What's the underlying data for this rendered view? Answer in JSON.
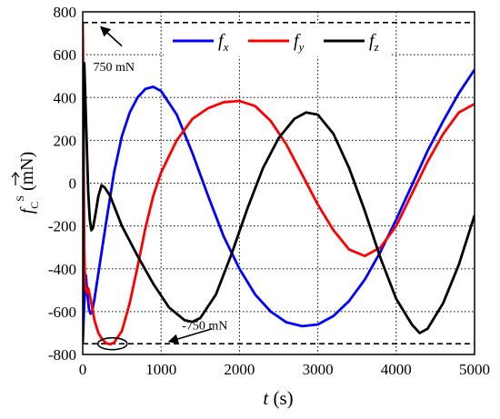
{
  "chart_data": {
    "type": "line",
    "xlabel": "t (s)",
    "ylabel": "f_C^S (mN)",
    "xlim": [
      0,
      5000
    ],
    "ylim": [
      -800,
      800
    ],
    "xticks": [
      "0",
      "1000",
      "2000",
      "3000",
      "4000",
      "5000"
    ],
    "yticks": [
      "800",
      "600",
      "400",
      "200",
      "0",
      "-200",
      "-400",
      "-600",
      "-800"
    ],
    "grid": true,
    "legend_position": "top",
    "series": [
      {
        "name": "f_x",
        "color": "#0000ff",
        "points": [
          [
            0,
            -750
          ],
          [
            20,
            -560
          ],
          [
            40,
            -430
          ],
          [
            60,
            -520
          ],
          [
            80,
            -590
          ],
          [
            100,
            -610
          ],
          [
            120,
            -600
          ],
          [
            150,
            -540
          ],
          [
            200,
            -420
          ],
          [
            300,
            -180
          ],
          [
            400,
            50
          ],
          [
            500,
            220
          ],
          [
            600,
            330
          ],
          [
            700,
            400
          ],
          [
            800,
            440
          ],
          [
            900,
            450
          ],
          [
            1000,
            430
          ],
          [
            1200,
            320
          ],
          [
            1400,
            140
          ],
          [
            1600,
            -60
          ],
          [
            1800,
            -250
          ],
          [
            2000,
            -400
          ],
          [
            2200,
            -520
          ],
          [
            2400,
            -600
          ],
          [
            2600,
            -650
          ],
          [
            2800,
            -668
          ],
          [
            3000,
            -660
          ],
          [
            3200,
            -620
          ],
          [
            3400,
            -550
          ],
          [
            3600,
            -450
          ],
          [
            3800,
            -320
          ],
          [
            4000,
            -170
          ],
          [
            4200,
            -10
          ],
          [
            4400,
            150
          ],
          [
            4600,
            290
          ],
          [
            4800,
            420
          ],
          [
            5000,
            530
          ]
        ]
      },
      {
        "name": "f_y",
        "color": "#ff0000",
        "points": [
          [
            0,
            750
          ],
          [
            5,
            580
          ],
          [
            10,
            200
          ],
          [
            20,
            -300
          ],
          [
            30,
            -480
          ],
          [
            50,
            -510
          ],
          [
            70,
            -490
          ],
          [
            100,
            -540
          ],
          [
            150,
            -640
          ],
          [
            200,
            -700
          ],
          [
            250,
            -730
          ],
          [
            300,
            -748
          ],
          [
            350,
            -752
          ],
          [
            400,
            -745
          ],
          [
            500,
            -690
          ],
          [
            600,
            -560
          ],
          [
            700,
            -390
          ],
          [
            800,
            -210
          ],
          [
            900,
            -60
          ],
          [
            1000,
            50
          ],
          [
            1200,
            200
          ],
          [
            1400,
            300
          ],
          [
            1600,
            350
          ],
          [
            1800,
            378
          ],
          [
            2000,
            384
          ],
          [
            2200,
            360
          ],
          [
            2400,
            290
          ],
          [
            2600,
            180
          ],
          [
            2800,
            40
          ],
          [
            3000,
            -100
          ],
          [
            3200,
            -220
          ],
          [
            3400,
            -310
          ],
          [
            3600,
            -340
          ],
          [
            3800,
            -300
          ],
          [
            4000,
            -200
          ],
          [
            4200,
            -50
          ],
          [
            4400,
            100
          ],
          [
            4600,
            230
          ],
          [
            4800,
            330
          ],
          [
            5000,
            370
          ]
        ]
      },
      {
        "name": "f_z",
        "color": "#000000",
        "points": [
          [
            0,
            -740
          ],
          [
            5,
            -300
          ],
          [
            10,
            200
          ],
          [
            15,
            480
          ],
          [
            20,
            560
          ],
          [
            30,
            440
          ],
          [
            50,
            200
          ],
          [
            70,
            -40
          ],
          [
            90,
            -170
          ],
          [
            110,
            -220
          ],
          [
            130,
            -210
          ],
          [
            160,
            -150
          ],
          [
            200,
            -60
          ],
          [
            240,
            -10
          ],
          [
            280,
            -20
          ],
          [
            350,
            -60
          ],
          [
            500,
            -200
          ],
          [
            700,
            -340
          ],
          [
            900,
            -470
          ],
          [
            1100,
            -580
          ],
          [
            1300,
            -640
          ],
          [
            1400,
            -648
          ],
          [
            1500,
            -630
          ],
          [
            1700,
            -520
          ],
          [
            1900,
            -330
          ],
          [
            2100,
            -120
          ],
          [
            2300,
            70
          ],
          [
            2500,
            210
          ],
          [
            2700,
            300
          ],
          [
            2850,
            330
          ],
          [
            3000,
            320
          ],
          [
            3200,
            230
          ],
          [
            3400,
            70
          ],
          [
            3600,
            -130
          ],
          [
            3800,
            -350
          ],
          [
            4000,
            -540
          ],
          [
            4200,
            -660
          ],
          [
            4300,
            -700
          ],
          [
            4400,
            -680
          ],
          [
            4600,
            -560
          ],
          [
            4800,
            -380
          ],
          [
            5000,
            -150
          ]
        ]
      }
    ],
    "reference_lines": [
      {
        "value": 750,
        "style": "dashed",
        "color": "#000000"
      },
      {
        "value": -750,
        "style": "dashed",
        "color": "#000000"
      }
    ],
    "annotations": [
      {
        "text": "750 mN",
        "x": 250,
        "y": 600
      },
      {
        "text": "-750 mN",
        "x": 1500,
        "y": -650
      }
    ]
  }
}
